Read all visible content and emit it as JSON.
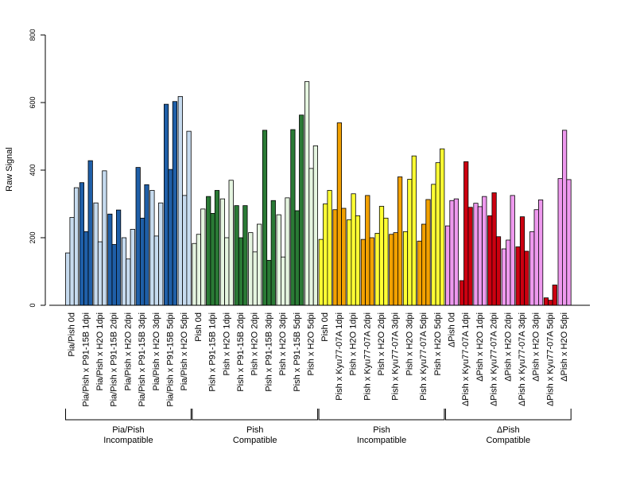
{
  "chart_data": {
    "type": "bar",
    "ylabel": "Raw Signal",
    "xlabel": "",
    "ylim": [
      0,
      800
    ],
    "yticks": [
      0,
      200,
      400,
      600,
      800
    ],
    "grid": false,
    "legend": "none",
    "colors": {
      "Pia/Pish": {
        "light": "#c6dbef",
        "dark": "#1f5fa8"
      },
      "Pish": {
        "light": "#e5f5e0",
        "dark": "#2a7a35"
      },
      "Pish-inc": {
        "light": "#ffff33",
        "dark": "#f2a100"
      },
      "dPish": {
        "light": "#ee99ee",
        "dark": "#cc0010"
      }
    },
    "groups": [
      {
        "line1": "Pia/Pish",
        "line2": "Incompatible",
        "start": 0,
        "end": 8
      },
      {
        "line1": "Pish",
        "line2": "Compatible",
        "start": 9,
        "end": 17
      },
      {
        "line1": "Pish",
        "line2": "Incompatible",
        "start": 18,
        "end": 26
      },
      {
        "line1": "ΔPish",
        "line2": "Compatible",
        "start": 27,
        "end": 35
      }
    ],
    "categories": [
      {
        "label": "Pia/Pish 0d",
        "values": [
          155,
          260,
          348
        ],
        "palette": "Pia/Pish",
        "shade": "light"
      },
      {
        "label": "Pia/Pish x P91-15B 1dpi",
        "values": [
          363,
          218,
          428
        ],
        "palette": "Pia/Pish",
        "shade": "dark"
      },
      {
        "label": "Pia/Pish x H2O 1dpi",
        "values": [
          303,
          188,
          398
        ],
        "palette": "Pia/Pish",
        "shade": "light"
      },
      {
        "label": "Pia/Pish x P91-15B 2dpi",
        "values": [
          270,
          180,
          282
        ],
        "palette": "Pia/Pish",
        "shade": "dark"
      },
      {
        "label": "Pia/Pish x H2O 2dpi",
        "values": [
          200,
          137,
          225
        ],
        "palette": "Pia/Pish",
        "shade": "light"
      },
      {
        "label": "Pia/Pish x P91-15B 3dpi",
        "values": [
          408,
          258,
          357
        ],
        "palette": "Pia/Pish",
        "shade": "dark"
      },
      {
        "label": "Pia/Pish x H2O 3dpi",
        "values": [
          340,
          205,
          303
        ],
        "palette": "Pia/Pish",
        "shade": "light"
      },
      {
        "label": "Pia/Pish x P91-15B 5dpi",
        "values": [
          595,
          402,
          603
        ],
        "palette": "Pia/Pish",
        "shade": "dark"
      },
      {
        "label": "Pia/Pish x H2O 5dpi",
        "values": [
          618,
          325,
          515
        ],
        "palette": "Pia/Pish",
        "shade": "light"
      },
      {
        "label": "Pish 0d",
        "values": [
          183,
          210,
          285
        ],
        "palette": "Pish",
        "shade": "light"
      },
      {
        "label": "Pish x P91-15B 1dpi",
        "values": [
          322,
          272,
          340
        ],
        "palette": "Pish",
        "shade": "dark"
      },
      {
        "label": "Pish x H2O 1dpi",
        "values": [
          315,
          200,
          370
        ],
        "palette": "Pish",
        "shade": "light"
      },
      {
        "label": "Pish x P91-15B 2dpi",
        "values": [
          295,
          200,
          295
        ],
        "palette": "Pish",
        "shade": "dark"
      },
      {
        "label": "Pish x H2O 2dpi",
        "values": [
          215,
          158,
          240
        ],
        "palette": "Pish",
        "shade": "light"
      },
      {
        "label": "Pish x P91-15B 3dpi",
        "values": [
          518,
          133,
          310
        ],
        "palette": "Pish",
        "shade": "dark"
      },
      {
        "label": "Pish x H2O 3dpi",
        "values": [
          268,
          143,
          318
        ],
        "palette": "Pish",
        "shade": "light"
      },
      {
        "label": "Pish x P91-15B 5dpi",
        "values": [
          520,
          280,
          563
        ],
        "palette": "Pish",
        "shade": "dark"
      },
      {
        "label": "Pish x H2O 5dpi",
        "values": [
          662,
          405,
          472
        ],
        "palette": "Pish",
        "shade": "light"
      },
      {
        "label": "Pish 0d",
        "values": [
          195,
          300,
          340
        ],
        "palette": "Pish-inc",
        "shade": "light"
      },
      {
        "label": "Pish x Kyu77-07A 1dpi",
        "values": [
          283,
          540,
          287
        ],
        "palette": "Pish-inc",
        "shade": "dark"
      },
      {
        "label": "Pish x H2O 1dpi",
        "values": [
          253,
          330,
          265
        ],
        "palette": "Pish-inc",
        "shade": "light"
      },
      {
        "label": "Pish x Kyu77-07A 2dpi",
        "values": [
          195,
          325,
          200
        ],
        "palette": "Pish-inc",
        "shade": "dark"
      },
      {
        "label": "Pish x H2O 2dpi",
        "values": [
          213,
          293,
          258
        ],
        "palette": "Pish-inc",
        "shade": "light"
      },
      {
        "label": "Pish x Kyu77-07A 3dpi",
        "values": [
          210,
          215,
          380
        ],
        "palette": "Pish-inc",
        "shade": "dark"
      },
      {
        "label": "Pish x H2O 3dpi",
        "values": [
          218,
          373,
          442
        ],
        "palette": "Pish-inc",
        "shade": "light"
      },
      {
        "label": "Pish x Kyu77-07A 5dpi",
        "values": [
          190,
          240,
          313
        ],
        "palette": "Pish-inc",
        "shade": "dark"
      },
      {
        "label": "Pish x H2O 5dpi",
        "values": [
          358,
          422,
          463
        ],
        "palette": "Pish-inc",
        "shade": "light"
      },
      {
        "label": "ΔPish 0d",
        "values": [
          235,
          310,
          315
        ],
        "palette": "dPish",
        "shade": "light"
      },
      {
        "label": "ΔPish x Kyu77-07A 1dpi",
        "values": [
          73,
          425,
          290
        ],
        "palette": "dPish",
        "shade": "dark"
      },
      {
        "label": "ΔPish x H2O 1dpi",
        "values": [
          302,
          292,
          322
        ],
        "palette": "dPish",
        "shade": "light"
      },
      {
        "label": "ΔPish x Kyu77-07A 2dpi",
        "values": [
          265,
          333,
          203
        ],
        "palette": "dPish",
        "shade": "dark"
      },
      {
        "label": "ΔPish x H2O 2dpi",
        "values": [
          167,
          193,
          325
        ],
        "palette": "dPish",
        "shade": "light"
      },
      {
        "label": "ΔPish x Kyu77-07A 3dpi",
        "values": [
          173,
          262,
          160
        ],
        "palette": "dPish",
        "shade": "dark"
      },
      {
        "label": "ΔPish x H2O 3dpi",
        "values": [
          218,
          283,
          312
        ],
        "palette": "dPish",
        "shade": "light"
      },
      {
        "label": "ΔPish x Kyu77-07A 5dpi",
        "values": [
          22,
          15,
          60
        ],
        "palette": "dPish",
        "shade": "dark"
      },
      {
        "label": "ΔPish x H2O 5dpi",
        "values": [
          375,
          518,
          372
        ],
        "palette": "dPish",
        "shade": "light"
      }
    ]
  }
}
